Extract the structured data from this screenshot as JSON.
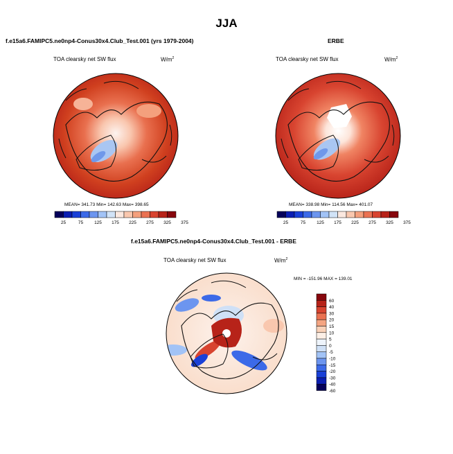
{
  "season_title": "JJA",
  "colors": {
    "field_scale": [
      "#05005a",
      "#0b1eb2",
      "#1a40d7",
      "#3c6ae8",
      "#6c95ef",
      "#a2c3f6",
      "#d1e3f7",
      "#fbe8df",
      "#f9c7ae",
      "#f4a07d",
      "#ea7252",
      "#d84430",
      "#b72319",
      "#87070d"
    ],
    "diff_scale": [
      "#05005a",
      "#0b1eb2",
      "#1a40d7",
      "#3c6ae8",
      "#6c95ef",
      "#a2c3f6",
      "#cfe0f6",
      "#eef4fb",
      "#fcefe6",
      "#f9d1b8",
      "#f4a582",
      "#ea7252",
      "#d84430",
      "#b72319",
      "#87070d"
    ]
  },
  "panels": [
    {
      "title": "f.e15a6.FAMIPC5.ne0np4-Conus30x4.Club_Test.001 (yrs 1979-2004)",
      "variable": "TOA clearsky net SW flux",
      "units": "W/m",
      "units_exp": "2",
      "stats": "MEAN= 341.73  Min= 142.63  Max= 398.65"
    },
    {
      "title": "ERBE",
      "variable": "TOA clearsky net SW flux",
      "units": "W/m",
      "units_exp": "2",
      "stats": "MEAN= 338.98  Min= 114.56  Max= 401.07"
    },
    {
      "title": "f.e15a6.FAMIPC5.ne0np4-Conus30x4.Club_Test.001 - ERBE",
      "variable": "TOA clearsky net SW flux",
      "units": "W/m",
      "units_exp": "2",
      "stats": "MIN = -151.96 MAX = 139.01"
    }
  ],
  "chart_data": [
    {
      "type": "heatmap",
      "title": "f.e15a6.FAMIPC5.ne0np4-Conus30x4.Club_Test.001 (yrs 1979-2004)",
      "variable": "TOA clearsky net SW flux",
      "units": "W/m2",
      "projection": "north-polar-stereographic",
      "mean": 341.73,
      "min": 142.63,
      "max": 398.65,
      "colorbar_levels": [
        25,
        75,
        125,
        175,
        225,
        275,
        325,
        375
      ],
      "colorbar_orientation": "horizontal"
    },
    {
      "type": "heatmap",
      "title": "ERBE",
      "variable": "TOA clearsky net SW flux",
      "units": "W/m2",
      "projection": "north-polar-stereographic",
      "mean": 338.98,
      "min": 114.56,
      "max": 401.07,
      "colorbar_levels": [
        25,
        75,
        125,
        175,
        225,
        275,
        325,
        375
      ],
      "colorbar_orientation": "horizontal"
    },
    {
      "type": "heatmap",
      "title": "f.e15a6.FAMIPC5.ne0np4-Conus30x4.Club_Test.001 - ERBE",
      "variable": "TOA clearsky net SW flux",
      "units": "W/m2",
      "projection": "north-polar-stereographic",
      "min": -151.96,
      "max": 139.01,
      "colorbar_levels": [
        60,
        40,
        30,
        20,
        15,
        10,
        5,
        0,
        -5,
        -10,
        -15,
        -20,
        -30,
        -40,
        -60
      ],
      "colorbar_orientation": "vertical"
    }
  ]
}
